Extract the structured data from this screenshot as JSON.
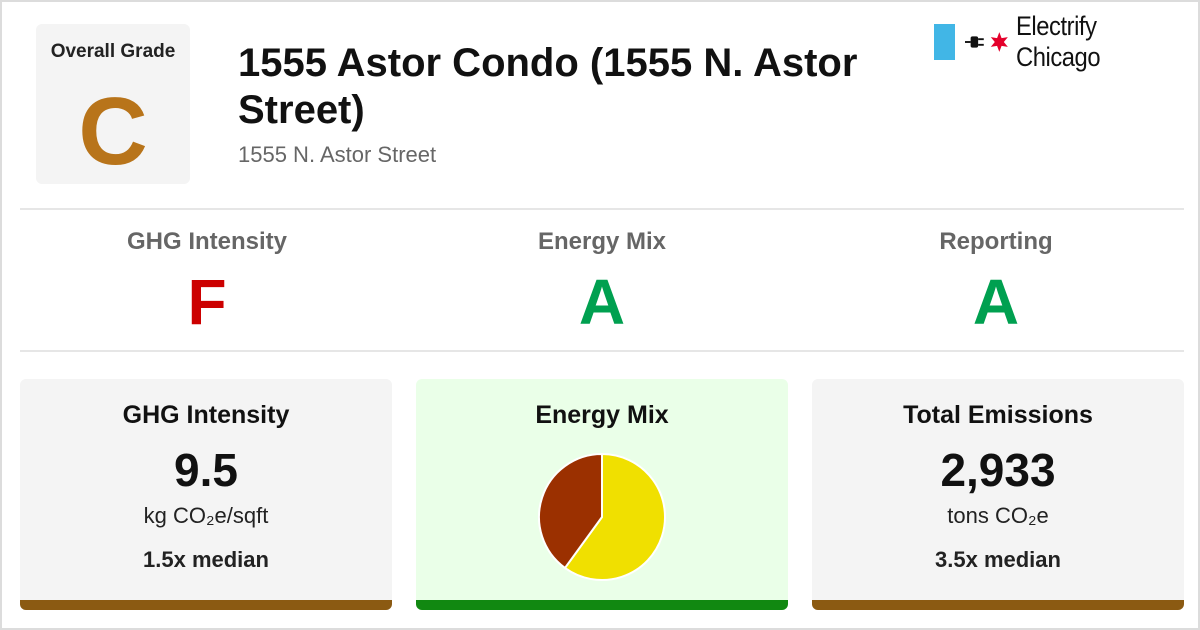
{
  "header": {
    "overall_grade_label": "Overall Grade",
    "overall_grade": "C",
    "overall_grade_color": "#b8741a",
    "title": "1555 Astor Condo (1555 N. Astor Street)",
    "address": "1555 N. Astor Street",
    "logo": {
      "text": "Electrify Chicago",
      "icons": [
        "chicago-flag-stripe",
        "plug-icon",
        "chicago-star-icon"
      ],
      "flag_color": "#41b6e6",
      "star_color": "#e4002b"
    }
  },
  "grades": [
    {
      "label": "GHG Intensity",
      "grade": "F",
      "color": "#cc0000"
    },
    {
      "label": "Energy Mix",
      "grade": "A",
      "color": "#00a050"
    },
    {
      "label": "Reporting",
      "grade": "A",
      "color": "#00a050"
    }
  ],
  "cards": {
    "ghg_intensity": {
      "title": "GHG Intensity",
      "value": "9.5",
      "unit": "kg CO₂e/sqft",
      "median": "1.5x median",
      "bar_color": "#8b5a12",
      "background": "#f4f4f4"
    },
    "energy_mix": {
      "title": "Energy Mix",
      "bar_color": "#118811",
      "background": "#eaffe8"
    },
    "total_emissions": {
      "title": "Total Emissions",
      "value": "2,933",
      "unit": "tons CO₂e",
      "median": "3.5x median",
      "bar_color": "#8b5a12",
      "background": "#f4f4f4"
    }
  },
  "chart_data": {
    "type": "pie",
    "slices": [
      {
        "fraction": 0.6,
        "color": "#f0e000"
      },
      {
        "fraction": 0.4,
        "color": "#9b3000"
      }
    ]
  }
}
